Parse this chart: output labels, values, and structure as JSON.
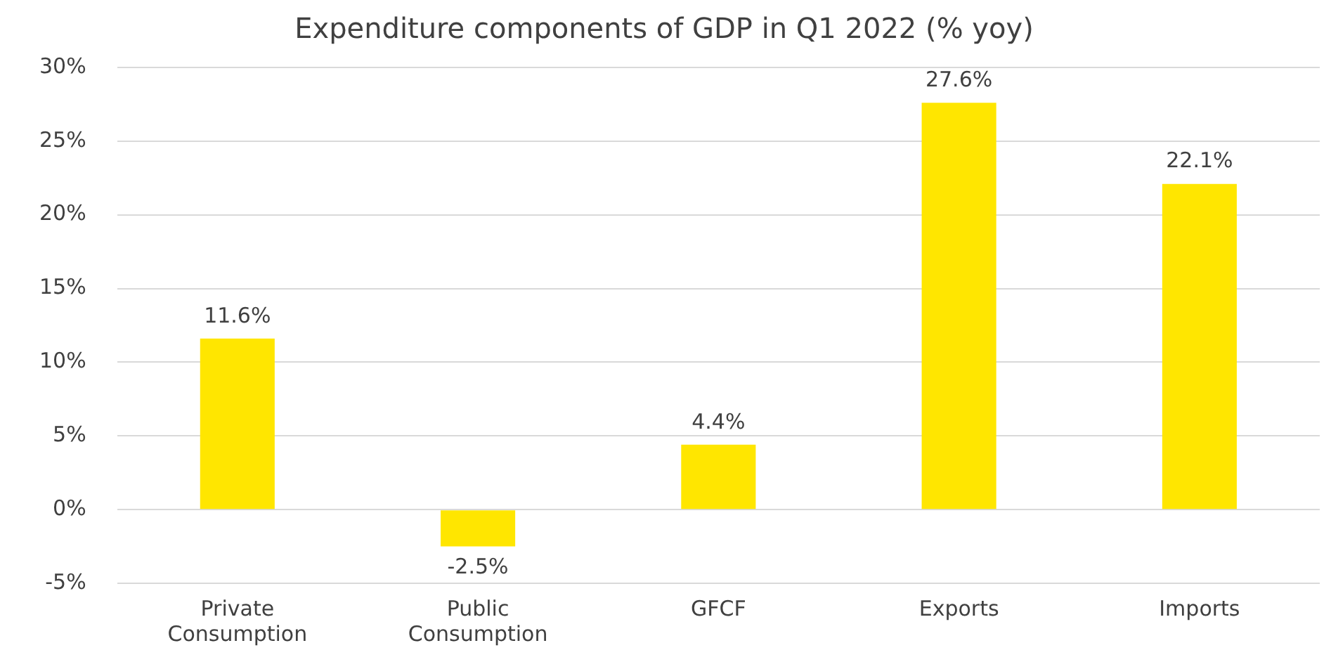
{
  "chart_data": {
    "type": "bar",
    "title": "Expenditure components of GDP in Q1 2022 (% yoy)",
    "categories": [
      "Private Consumption",
      "Public Consumption",
      "GFCF",
      "Exports",
      "Imports"
    ],
    "values": [
      11.6,
      -2.5,
      4.4,
      27.6,
      22.1
    ],
    "value_labels": [
      "11.6%",
      "-2.5%",
      "4.4%",
      "27.6%",
      "22.1%"
    ],
    "color": "#ffe600",
    "ylim": [
      -5,
      30
    ],
    "yticks": [
      {
        "value": -5,
        "label": "-5%"
      },
      {
        "value": 0,
        "label": "0%"
      },
      {
        "value": 5,
        "label": "5%"
      },
      {
        "value": 10,
        "label": "10%"
      },
      {
        "value": 15,
        "label": "15%"
      },
      {
        "value": 20,
        "label": "20%"
      },
      {
        "value": 25,
        "label": "25%"
      },
      {
        "value": 30,
        "label": "30%"
      }
    ],
    "grid": "y",
    "legend": false
  }
}
